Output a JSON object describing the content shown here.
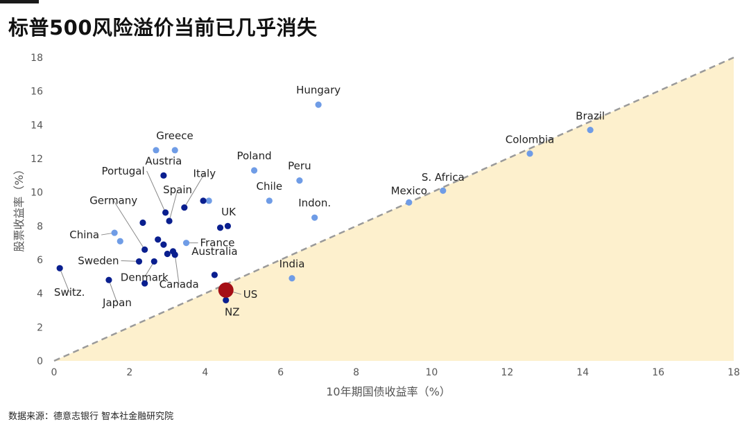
{
  "title": "标普500风险溢价当前已几乎消失",
  "source": "数据来源：德意志银行  智本社金融研究院",
  "colors": {
    "developed": "#0a1f8f",
    "emerging": "#6f9ce6",
    "us": "#a50f15",
    "shade": "#fdf0cd",
    "diagonal": "#9a9a9a"
  },
  "chart_data": {
    "type": "scatter",
    "xlabel": "10年期国债收益率（%）",
    "ylabel": "股票收益率（%）",
    "xlim": [
      0,
      18
    ],
    "ylim": [
      0,
      18
    ],
    "xticks": [
      0,
      2,
      4,
      6,
      8,
      10,
      12,
      14,
      16,
      18
    ],
    "yticks": [
      0,
      2,
      4,
      6,
      8,
      10,
      12,
      14,
      16,
      18
    ],
    "reference_line": "y = x, area below shaded",
    "points": [
      {
        "label": "Hungary",
        "x": 7.0,
        "y": 15.2,
        "group": "emerging"
      },
      {
        "label": "Brazil",
        "x": 14.2,
        "y": 13.7,
        "group": "emerging"
      },
      {
        "label": "Colombia",
        "x": 12.6,
        "y": 12.3,
        "group": "emerging"
      },
      {
        "label": "S. Africa",
        "x": 10.3,
        "y": 10.1,
        "group": "emerging"
      },
      {
        "label": "Mexico",
        "x": 9.4,
        "y": 9.4,
        "group": "emerging"
      },
      {
        "label": "Poland",
        "x": 5.3,
        "y": 11.3,
        "group": "emerging"
      },
      {
        "label": "Peru",
        "x": 6.5,
        "y": 10.7,
        "group": "emerging"
      },
      {
        "label": "Chile",
        "x": 5.7,
        "y": 9.5,
        "group": "emerging"
      },
      {
        "label": "Indon.",
        "x": 6.9,
        "y": 8.5,
        "group": "emerging"
      },
      {
        "label": "India",
        "x": 6.3,
        "y": 4.9,
        "group": "emerging"
      },
      {
        "label": "Greece",
        "x": 2.7,
        "y": 12.5,
        "group": "emerging"
      },
      {
        "label": "",
        "x": 3.2,
        "y": 12.5,
        "group": "emerging"
      },
      {
        "label": "China",
        "x": 1.6,
        "y": 7.6,
        "group": "emerging"
      },
      {
        "label": "",
        "x": 1.75,
        "y": 7.1,
        "group": "emerging"
      },
      {
        "label": "",
        "x": 4.1,
        "y": 9.5,
        "group": "emerging"
      },
      {
        "label": "France",
        "x": 3.5,
        "y": 7.0,
        "group": "emerging"
      },
      {
        "label": "Austria",
        "x": 2.9,
        "y": 11.0,
        "group": "developed"
      },
      {
        "label": "Portugal",
        "x": 2.95,
        "y": 8.8,
        "group": "developed"
      },
      {
        "label": "Spain",
        "x": 3.05,
        "y": 8.3,
        "group": "developed"
      },
      {
        "label": "Italy",
        "x": 3.45,
        "y": 9.1,
        "group": "developed"
      },
      {
        "label": "",
        "x": 3.95,
        "y": 9.5,
        "group": "developed"
      },
      {
        "label": "UK",
        "x": 4.4,
        "y": 7.9,
        "group": "developed"
      },
      {
        "label": "",
        "x": 4.6,
        "y": 8.0,
        "group": "developed"
      },
      {
        "label": "Germany",
        "x": 2.4,
        "y": 6.6,
        "group": "developed"
      },
      {
        "label": "",
        "x": 2.35,
        "y": 8.2,
        "group": "developed"
      },
      {
        "label": "",
        "x": 2.75,
        "y": 7.2,
        "group": "developed"
      },
      {
        "label": "",
        "x": 2.9,
        "y": 6.9,
        "group": "developed"
      },
      {
        "label": "",
        "x": 3.15,
        "y": 6.5,
        "group": "developed"
      },
      {
        "label": "Canada",
        "x": 3.2,
        "y": 6.3,
        "group": "developed"
      },
      {
        "label": "",
        "x": 3.0,
        "y": 6.35,
        "group": "developed"
      },
      {
        "label": "Sweden",
        "x": 2.25,
        "y": 5.9,
        "group": "developed"
      },
      {
        "label": "Denmark",
        "x": 2.65,
        "y": 5.9,
        "group": "developed"
      },
      {
        "label": "Australia",
        "x": 4.25,
        "y": 5.1,
        "group": "developed"
      },
      {
        "label": "",
        "x": 2.4,
        "y": 4.6,
        "group": "developed"
      },
      {
        "label": "Switz.",
        "x": 0.15,
        "y": 5.5,
        "group": "developed"
      },
      {
        "label": "Japan",
        "x": 1.45,
        "y": 4.8,
        "group": "developed"
      },
      {
        "label": "NZ",
        "x": 4.55,
        "y": 3.6,
        "group": "developed"
      },
      {
        "label": "US",
        "x": 4.55,
        "y": 4.2,
        "group": "us"
      }
    ]
  }
}
